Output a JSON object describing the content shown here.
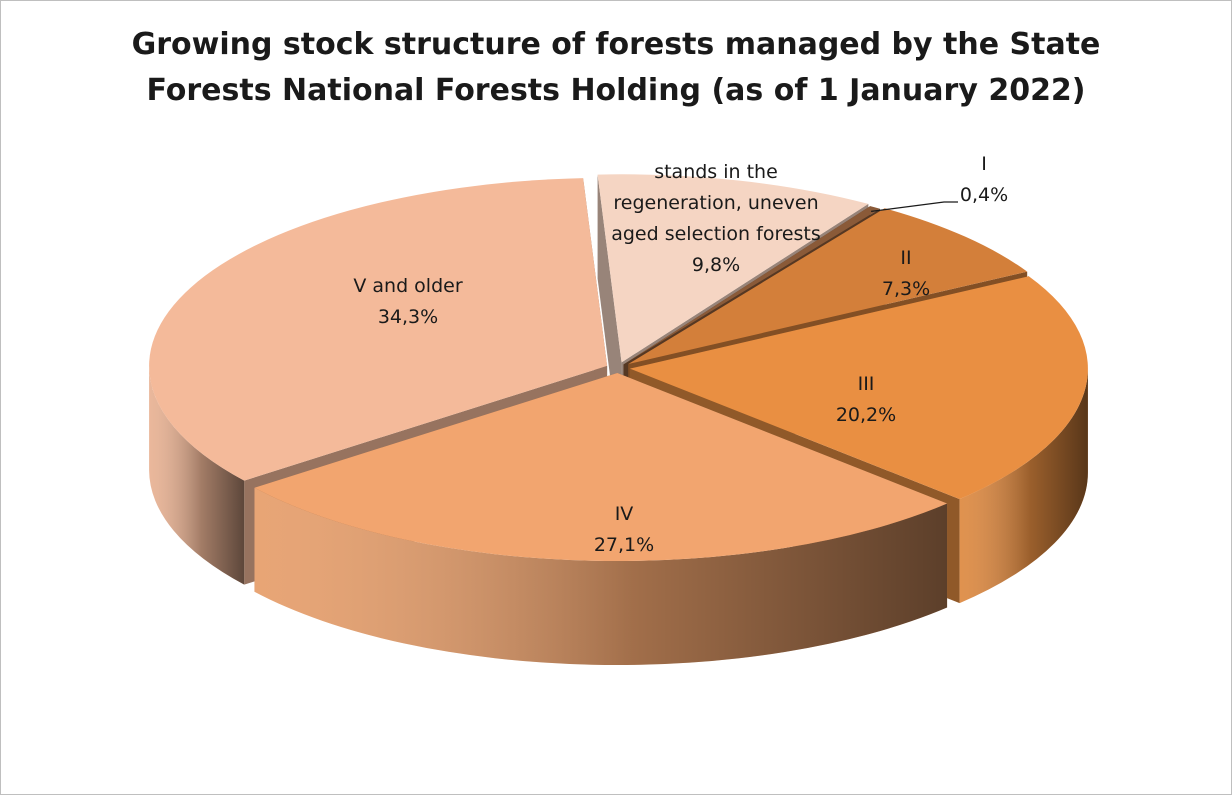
{
  "chart_data": {
    "type": "pie",
    "title_lines": [
      "Growing stock structure of forests managed by the State",
      "Forests National Forests Holding (as of 1 January 2022)"
    ],
    "slices": [
      {
        "label_lines": [
          "stands in the",
          "regeneration, uneven",
          "aged selection forests"
        ],
        "value": 9.8,
        "value_text": "9,8%",
        "color": "#f5d5c3"
      },
      {
        "label_lines": [
          "I"
        ],
        "value": 0.4,
        "value_text": "0,4%",
        "color": "#8a5a38"
      },
      {
        "label_lines": [
          "II"
        ],
        "value": 7.3,
        "value_text": "7,3%",
        "color": "#d37f3a"
      },
      {
        "label_lines": [
          "III"
        ],
        "value": 20.2,
        "value_text": "20,2%",
        "color": "#e98f42"
      },
      {
        "label_lines": [
          "IV"
        ],
        "value": 27.1,
        "value_text": "27,1%",
        "color": "#f2a56f"
      },
      {
        "label_lines": [
          "V and older"
        ],
        "value": 34.3,
        "value_text": "34,3%",
        "color": "#f4ba9a"
      }
    ],
    "legend": "none"
  }
}
